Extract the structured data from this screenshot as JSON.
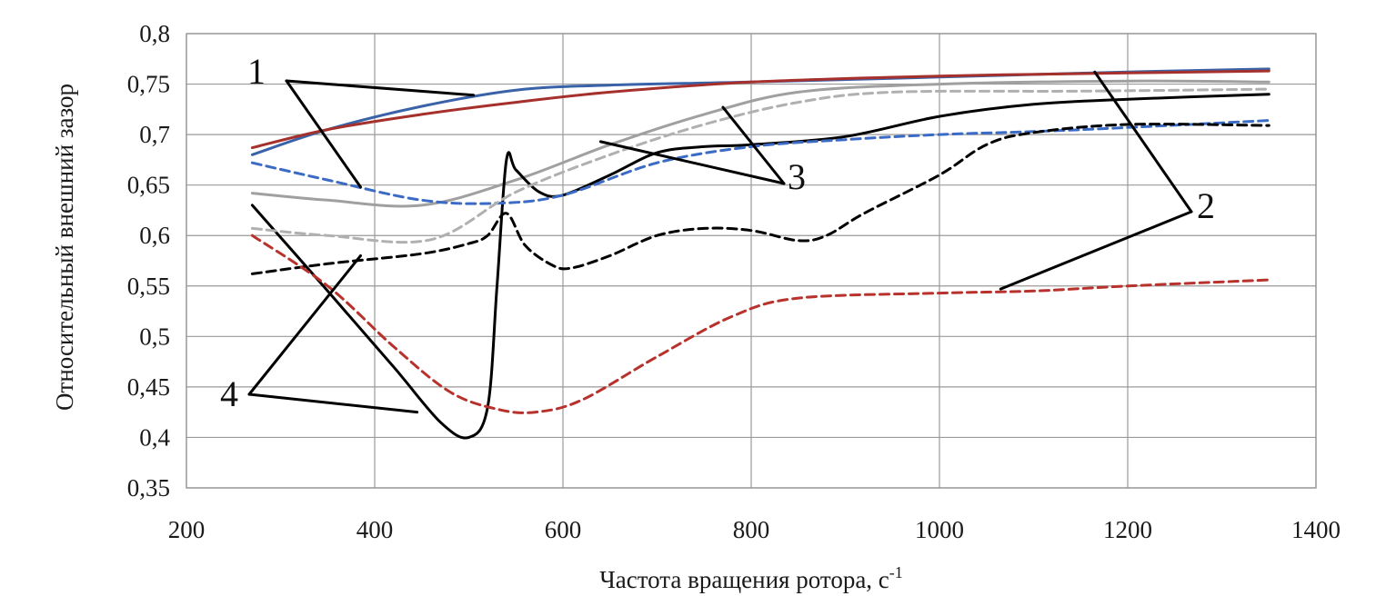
{
  "chart_data": {
    "type": "line",
    "title": "",
    "xlabel": "Частота вращения ротора, с",
    "xlabel_superscript": "-1",
    "ylabel": "Относительный  внешний  зазор",
    "xlim": [
      200,
      1400
    ],
    "ylim": [
      0.35,
      0.8
    ],
    "x_ticks": [
      200,
      400,
      600,
      800,
      1000,
      1200,
      1400
    ],
    "y_ticks": [
      0.35,
      0.4,
      0.45,
      0.5,
      0.55,
      0.6,
      0.65,
      0.7,
      0.75,
      0.8
    ],
    "x_tick_labels": [
      "200",
      "400",
      "600",
      "800",
      "1000",
      "1200",
      "1400"
    ],
    "y_tick_labels": [
      "0,35",
      "0,4",
      "0,45",
      "0,5",
      "0,55",
      "0,6",
      "0,65",
      "0,7",
      "0,75",
      "0,8"
    ],
    "grid": true,
    "legend": "none",
    "series": [
      {
        "color": "#3a62a8",
        "dash": "solid",
        "points": [
          [
            270,
            0.68
          ],
          [
            350,
            0.705
          ],
          [
            450,
            0.728
          ],
          [
            550,
            0.744
          ],
          [
            650,
            0.749
          ],
          [
            800,
            0.752
          ],
          [
            1000,
            0.757
          ],
          [
            1200,
            0.762
          ],
          [
            1350,
            0.765
          ]
        ]
      },
      {
        "color": "#a5302c",
        "dash": "solid",
        "points": [
          [
            270,
            0.687
          ],
          [
            350,
            0.705
          ],
          [
            450,
            0.72
          ],
          [
            550,
            0.732
          ],
          [
            650,
            0.742
          ],
          [
            800,
            0.752
          ],
          [
            1000,
            0.758
          ],
          [
            1200,
            0.761
          ],
          [
            1350,
            0.763
          ]
        ]
      },
      {
        "color": "#a0a0a0",
        "dash": "solid",
        "points": [
          [
            270,
            0.642
          ],
          [
            350,
            0.635
          ],
          [
            450,
            0.63
          ],
          [
            550,
            0.655
          ],
          [
            650,
            0.69
          ],
          [
            750,
            0.72
          ],
          [
            850,
            0.742
          ],
          [
            1000,
            0.75
          ],
          [
            1200,
            0.753
          ],
          [
            1350,
            0.752
          ]
        ]
      },
      {
        "color": "#000000",
        "dash": "solid",
        "points": [
          [
            270,
            0.63
          ],
          [
            350,
            0.545
          ],
          [
            420,
            0.47
          ],
          [
            470,
            0.415
          ],
          [
            500,
            0.4
          ],
          [
            520,
            0.43
          ],
          [
            530,
            0.55
          ],
          [
            540,
            0.675
          ],
          [
            550,
            0.665
          ],
          [
            575,
            0.643
          ],
          [
            600,
            0.64
          ],
          [
            650,
            0.66
          ],
          [
            700,
            0.682
          ],
          [
            750,
            0.688
          ],
          [
            800,
            0.69
          ],
          [
            900,
            0.698
          ],
          [
            1000,
            0.718
          ],
          [
            1100,
            0.73
          ],
          [
            1200,
            0.735
          ],
          [
            1350,
            0.74
          ]
        ]
      },
      {
        "color": "#3b6bc4",
        "dash": "dash",
        "points": [
          [
            270,
            0.672
          ],
          [
            350,
            0.655
          ],
          [
            450,
            0.635
          ],
          [
            530,
            0.632
          ],
          [
            600,
            0.64
          ],
          [
            700,
            0.672
          ],
          [
            800,
            0.688
          ],
          [
            900,
            0.695
          ],
          [
            1000,
            0.7
          ],
          [
            1100,
            0.703
          ],
          [
            1200,
            0.707
          ],
          [
            1350,
            0.714
          ]
        ]
      },
      {
        "color": "#b0b0b0",
        "dash": "dash",
        "points": [
          [
            270,
            0.607
          ],
          [
            350,
            0.6
          ],
          [
            460,
            0.596
          ],
          [
            550,
            0.643
          ],
          [
            650,
            0.68
          ],
          [
            750,
            0.71
          ],
          [
            850,
            0.732
          ],
          [
            950,
            0.742
          ],
          [
            1150,
            0.743
          ],
          [
            1350,
            0.745
          ]
        ]
      },
      {
        "color": "#000000",
        "dash": "dash",
        "points": [
          [
            270,
            0.562
          ],
          [
            350,
            0.572
          ],
          [
            450,
            0.582
          ],
          [
            500,
            0.592
          ],
          [
            520,
            0.6
          ],
          [
            540,
            0.622
          ],
          [
            560,
            0.59
          ],
          [
            590,
            0.57
          ],
          [
            610,
            0.568
          ],
          [
            650,
            0.58
          ],
          [
            700,
            0.6
          ],
          [
            750,
            0.607
          ],
          [
            800,
            0.605
          ],
          [
            850,
            0.595
          ],
          [
            880,
            0.6
          ],
          [
            920,
            0.622
          ],
          [
            1000,
            0.66
          ],
          [
            1050,
            0.69
          ],
          [
            1100,
            0.702
          ],
          [
            1200,
            0.71
          ],
          [
            1350,
            0.709
          ]
        ]
      },
      {
        "color": "#b8322d",
        "dash": "dash",
        "points": [
          [
            270,
            0.6
          ],
          [
            350,
            0.55
          ],
          [
            420,
            0.49
          ],
          [
            480,
            0.445
          ],
          [
            530,
            0.428
          ],
          [
            570,
            0.425
          ],
          [
            620,
            0.437
          ],
          [
            700,
            0.48
          ],
          [
            780,
            0.52
          ],
          [
            850,
            0.538
          ],
          [
            1000,
            0.543
          ],
          [
            1100,
            0.545
          ],
          [
            1200,
            0.55
          ],
          [
            1350,
            0.556
          ]
        ]
      }
    ],
    "annotations": [
      {
        "label": "1",
        "leaders_to": [
          [
            505,
            0.739
          ],
          [
            385,
            0.648
          ]
        ]
      },
      {
        "label": "2",
        "leaders_to": [
          [
            1165,
            0.762
          ],
          [
            1065,
            0.547
          ]
        ]
      },
      {
        "label": "3",
        "leaders_to": [
          [
            770,
            0.727
          ],
          [
            640,
            0.693
          ]
        ]
      },
      {
        "label": "4",
        "leaders_to": [
          [
            385,
            0.58
          ],
          [
            445,
            0.425
          ]
        ]
      }
    ]
  }
}
